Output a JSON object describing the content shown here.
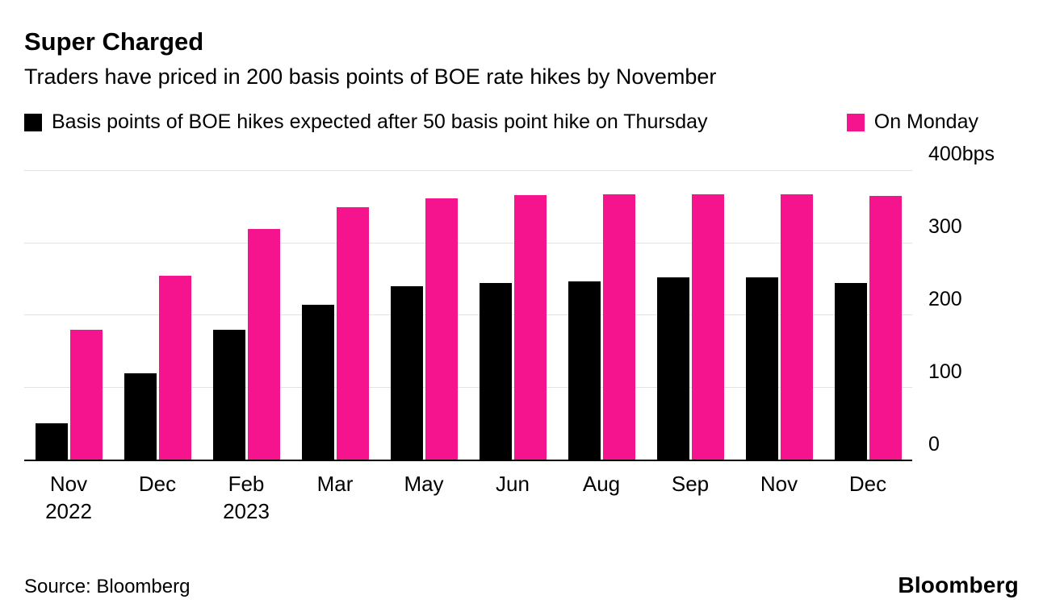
{
  "header": {
    "title": "Super Charged",
    "subtitle": "Traders have priced in 200 basis points of BOE rate hikes by November"
  },
  "legend": [
    {
      "label": "Basis points of BOE hikes expected after 50 basis point hike on Thursday",
      "color": "#000000"
    },
    {
      "label": "On Monday",
      "color": "#f5148e"
    }
  ],
  "colors": {
    "series_black": "#000000",
    "series_pink": "#f5148e",
    "gridline": "#e3e3e3",
    "baseline": "#000000",
    "background": "#ffffff"
  },
  "chart_data": {
    "type": "bar",
    "title": "Super Charged",
    "subtitle": "Traders have priced in 200 basis points of BOE rate hikes by November",
    "unit": "bps",
    "categories": [
      {
        "label": "Nov",
        "sub": "2022"
      },
      {
        "label": "Dec",
        "sub": ""
      },
      {
        "label": "Feb",
        "sub": "2023"
      },
      {
        "label": "Mar",
        "sub": ""
      },
      {
        "label": "May",
        "sub": ""
      },
      {
        "label": "Jun",
        "sub": ""
      },
      {
        "label": "Aug",
        "sub": ""
      },
      {
        "label": "Sep",
        "sub": ""
      },
      {
        "label": "Nov",
        "sub": ""
      },
      {
        "label": "Dec",
        "sub": ""
      }
    ],
    "series": [
      {
        "name": "Basis points of BOE hikes expected after 50 basis point hike on Thursday",
        "color": "#000000",
        "values": [
          50,
          120,
          180,
          215,
          240,
          245,
          247,
          252,
          253,
          245
        ]
      },
      {
        "name": "On Monday",
        "color": "#f5148e",
        "values": [
          180,
          255,
          320,
          350,
          362,
          366,
          368,
          368,
          368,
          365
        ]
      }
    ],
    "ylim": [
      0,
      400
    ],
    "yticks": [
      {
        "label": "400bps",
        "value": 400
      },
      {
        "label": "300",
        "value": 300
      },
      {
        "label": "200",
        "value": 200
      },
      {
        "label": "100",
        "value": 100
      },
      {
        "label": "0",
        "value": 0
      }
    ],
    "grid": true,
    "yaxis_position": "right",
    "legend_position": "top"
  },
  "footer": {
    "source": "Source: Bloomberg",
    "brand": "Bloomberg"
  }
}
